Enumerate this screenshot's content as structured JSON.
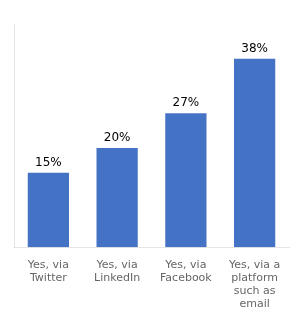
{
  "chart_data": {
    "type": "bar",
    "categories": [
      "Yes, via\nTwitter",
      "Yes, via\nLinkedIn",
      "Yes, via\nFacebook",
      "Yes, via a\nplatform\nsuch as\nemail"
    ],
    "values": [
      15,
      20,
      27,
      38
    ],
    "value_labels": [
      "15%",
      "20%",
      "27%",
      "38%"
    ],
    "data_labels": true,
    "color": "#4472C4",
    "ylim": [
      0,
      45
    ],
    "tick_labels": "x",
    "grid": false
  }
}
